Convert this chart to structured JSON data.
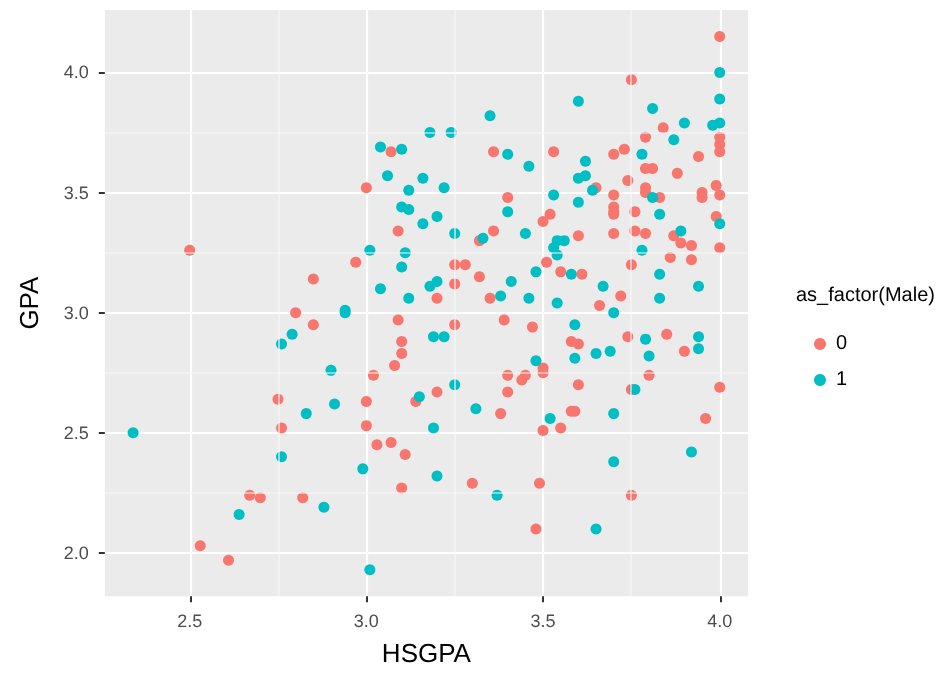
{
  "chart_data": {
    "type": "scatter",
    "xlabel": "HSGPA",
    "ylabel": "GPA",
    "legend_title": "as_factor(Male)",
    "legend": "right",
    "grid": true,
    "marker": "circle",
    "xlim": [
      2.26,
      4.08
    ],
    "ylim": [
      1.82,
      4.26
    ],
    "xticks": [
      {
        "value": 2.5,
        "label": "2.5"
      },
      {
        "value": 3,
        "label": "3.0"
      },
      {
        "value": 3.5,
        "label": "3.5"
      },
      {
        "value": 4,
        "label": "4.0"
      }
    ],
    "yticks": [
      {
        "value": 2,
        "label": "2.0"
      },
      {
        "value": 2.5,
        "label": "2.5"
      },
      {
        "value": 3,
        "label": "3.0"
      },
      {
        "value": 3.5,
        "label": "3.5"
      },
      {
        "value": 4,
        "label": "4.0"
      }
    ],
    "series": [
      {
        "name": "0",
        "color": "#f8766d",
        "x": [
          2.5,
          2.53,
          2.61,
          2.67,
          2.7,
          2.75,
          2.76,
          2.82,
          2.8,
          2.85,
          2.85,
          2.97,
          3.0,
          3.0,
          3.0,
          3.02,
          3.03,
          3.07,
          3.07,
          3.09,
          3.09,
          3.1,
          3.1,
          3.08,
          3.11,
          3.1,
          3.14,
          4.0,
          3.75,
          3.36,
          3.53,
          3.7,
          3.73,
          3.79,
          3.84,
          4.0,
          4.0,
          4.0,
          3.94,
          3.79,
          3.81,
          3.74,
          3.88,
          3.4,
          3.79,
          3.79,
          3.83,
          3.7,
          3.95,
          3.95,
          3.99,
          4.0,
          3.7,
          3.7,
          3.7,
          3.76,
          3.99,
          3.52,
          3.5,
          3.36,
          3.7,
          3.76,
          3.79,
          3.6,
          3.32,
          3.87,
          3.89,
          3.92,
          4.0,
          3.51,
          3.25,
          3.28,
          3.32,
          3.55,
          3.61,
          3.86,
          3.92,
          3.75,
          3.25,
          3.35,
          3.2,
          3.66,
          3.72,
          3.25,
          3.39,
          3.47,
          3.65,
          3.2,
          3.58,
          3.6,
          3.4,
          3.4,
          3.44,
          3.45,
          3.5,
          3.5,
          3.6,
          3.38,
          3.58,
          3.59,
          3.5,
          3.55,
          3.3,
          3.49,
          3.48,
          3.75,
          3.74,
          3.85,
          3.9,
          3.8,
          3.75,
          3.96,
          4.0
        ],
        "values": [
          3.26,
          2.03,
          1.97,
          2.24,
          2.23,
          2.64,
          2.52,
          2.23,
          3.0,
          3.14,
          2.95,
          3.21,
          3.52,
          2.63,
          2.53,
          2.74,
          2.45,
          2.46,
          3.67,
          3.34,
          2.97,
          2.88,
          2.83,
          2.78,
          2.41,
          2.27,
          2.63,
          4.15,
          3.97,
          3.67,
          3.67,
          3.66,
          3.68,
          3.73,
          3.77,
          3.73,
          3.7,
          3.67,
          3.65,
          3.6,
          3.6,
          3.55,
          3.58,
          3.48,
          3.52,
          3.5,
          3.48,
          3.49,
          3.5,
          3.48,
          3.53,
          3.49,
          3.44,
          3.42,
          3.41,
          3.42,
          3.4,
          3.41,
          3.38,
          3.34,
          3.33,
          3.34,
          3.33,
          3.32,
          3.3,
          3.32,
          3.29,
          3.28,
          3.27,
          3.21,
          3.2,
          3.2,
          3.15,
          3.17,
          3.16,
          3.23,
          3.22,
          3.2,
          3.12,
          3.06,
          3.06,
          3.03,
          3.07,
          2.95,
          2.97,
          2.94,
          3.52,
          2.67,
          2.88,
          2.87,
          2.74,
          2.67,
          2.72,
          2.74,
          2.77,
          2.75,
          2.7,
          2.58,
          2.59,
          2.59,
          2.51,
          2.52,
          2.29,
          2.29,
          2.1,
          2.24,
          2.9,
          2.91,
          2.84,
          2.74,
          2.68,
          2.56,
          2.69
        ]
      },
      {
        "name": "1",
        "color": "#00bfc4",
        "x": [
          2.34,
          2.64,
          2.76,
          2.76,
          2.79,
          2.83,
          2.88,
          2.9,
          2.91,
          2.94,
          2.94,
          2.99,
          3.01,
          3.01,
          3.04,
          3.04,
          3.06,
          3.1,
          3.12,
          3.1,
          3.12,
          3.11,
          3.1,
          3.12,
          3.16,
          3.18,
          3.24,
          3.22,
          3.16,
          3.2,
          3.25,
          3.35,
          3.4,
          3.46,
          3.4,
          3.33,
          3.18,
          3.2,
          3.41,
          3.38,
          3.46,
          3.45,
          3.48,
          3.53,
          3.54,
          3.56,
          3.53,
          3.54,
          3.54,
          3.6,
          3.62,
          3.6,
          3.62,
          3.6,
          3.64,
          3.58,
          3.67,
          3.7,
          3.78,
          3.81,
          3.87,
          3.9,
          3.98,
          4.0,
          4.0,
          4.0,
          3.81,
          3.83,
          3.78,
          3.89,
          3.83,
          3.83,
          3.94,
          4.0,
          3.59,
          3.15,
          3.19,
          3.22,
          3.25,
          3.19,
          3.2,
          3.31,
          3.37,
          3.48,
          3.52,
          3.59,
          3.65,
          3.69,
          3.7,
          3.7,
          3.65,
          3.79,
          3.8,
          3.76,
          3.94,
          3.94,
          3.92
        ],
        "values": [
          2.5,
          2.16,
          2.87,
          2.4,
          2.91,
          2.58,
          2.19,
          2.76,
          2.62,
          3.0,
          3.01,
          2.35,
          3.26,
          1.93,
          3.1,
          3.69,
          3.57,
          3.68,
          3.51,
          3.44,
          3.43,
          3.25,
          3.19,
          3.06,
          3.56,
          3.75,
          3.75,
          3.52,
          3.37,
          3.4,
          3.33,
          3.82,
          3.66,
          3.61,
          3.42,
          3.31,
          3.11,
          3.13,
          3.13,
          3.07,
          3.06,
          3.33,
          3.17,
          3.49,
          3.3,
          3.3,
          3.27,
          3.24,
          3.04,
          3.88,
          3.63,
          3.56,
          3.57,
          3.46,
          3.51,
          3.16,
          3.11,
          3.0,
          3.66,
          3.85,
          3.72,
          3.79,
          3.78,
          3.79,
          3.89,
          4.0,
          3.48,
          3.41,
          3.26,
          3.34,
          3.16,
          3.06,
          3.11,
          3.37,
          2.95,
          2.65,
          2.9,
          2.9,
          2.7,
          2.52,
          2.32,
          2.6,
          2.24,
          2.8,
          2.56,
          2.81,
          2.83,
          2.84,
          2.58,
          2.38,
          2.1,
          2.89,
          2.82,
          2.68,
          2.9,
          2.85,
          2.42
        ]
      }
    ]
  }
}
